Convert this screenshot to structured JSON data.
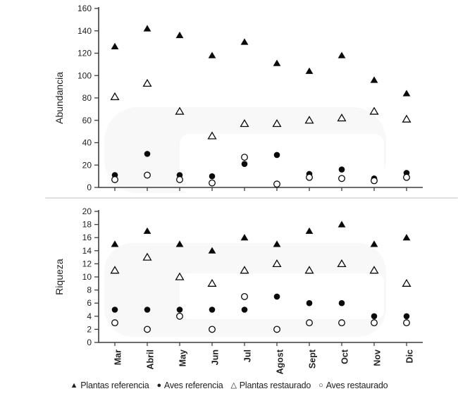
{
  "figure": {
    "background": "#ffffff",
    "divider_color": "#dedede",
    "axis_color": "#3d3d3d",
    "text_color": "#1f1f1f",
    "marker_color": "#0a0a0a"
  },
  "legend": {
    "items": [
      {
        "marker": "filled-triangle",
        "glyph": "▲",
        "label": "Plantas referencia"
      },
      {
        "marker": "filled-circle",
        "glyph": "●",
        "label": "Aves referencia"
      },
      {
        "marker": "open-triangle",
        "glyph": "△",
        "label": "Plantas restaurado"
      },
      {
        "marker": "open-circle",
        "glyph": "○",
        "label": "Aves restaurado"
      }
    ]
  },
  "chart_data": [
    {
      "type": "scatter",
      "title": "",
      "xlabel": "",
      "ylabel": "Abundancia",
      "grid": false,
      "legend_position": "bottom",
      "categories": [
        "Mar",
        "Abril",
        "May",
        "Jun",
        "Jul",
        "Agost",
        "Sept",
        "Oct",
        "Nov",
        "Dic"
      ],
      "ylim": [
        0,
        160
      ],
      "ytick_step": 20,
      "ytick_labels": [
        "0",
        "20",
        "40",
        "60",
        "80",
        "100",
        "120",
        "140",
        "160"
      ],
      "show_x_labels": false,
      "series": [
        {
          "name": "Plantas referencia",
          "marker": "filled-triangle",
          "values": [
            126,
            142,
            136,
            118,
            130,
            111,
            104,
            118,
            96,
            84
          ]
        },
        {
          "name": "Aves referencia",
          "marker": "filled-circle",
          "values": [
            11,
            30,
            11,
            10,
            21,
            29,
            12,
            16,
            8,
            13
          ]
        },
        {
          "name": "Plantas restaurado",
          "marker": "open-triangle",
          "values": [
            81,
            93,
            68,
            46,
            57,
            57,
            60,
            62,
            68,
            61
          ]
        },
        {
          "name": "Aves restaurado",
          "marker": "open-circle",
          "values": [
            7,
            11,
            7,
            4,
            27,
            3,
            9,
            8,
            6,
            9
          ]
        }
      ]
    },
    {
      "type": "scatter",
      "title": "",
      "xlabel": "",
      "ylabel": "Riqueza",
      "grid": false,
      "legend_position": "bottom",
      "categories": [
        "Mar",
        "Abril",
        "May",
        "Jun",
        "Jul",
        "Agost",
        "Sept",
        "Oct",
        "Nov",
        "Dic"
      ],
      "ylim": [
        0,
        20
      ],
      "ytick_step": 2,
      "ytick_labels": [
        "0",
        "2",
        "4",
        "6",
        "8",
        "10",
        "12",
        "14",
        "16",
        "18",
        "20"
      ],
      "show_x_labels": true,
      "series": [
        {
          "name": "Plantas referencia",
          "marker": "filled-triangle",
          "values": [
            15,
            17,
            15,
            14,
            16,
            15,
            17,
            18,
            15,
            16
          ]
        },
        {
          "name": "Aves referencia",
          "marker": "filled-circle",
          "values": [
            5,
            5,
            5,
            5,
            5,
            7,
            6,
            6,
            4,
            4
          ]
        },
        {
          "name": "Plantas restaurado",
          "marker": "open-triangle",
          "values": [
            11,
            13,
            10,
            9,
            11,
            12,
            11,
            12,
            11,
            9
          ]
        },
        {
          "name": "Aves restaurado",
          "marker": "open-circle",
          "values": [
            3,
            2,
            4,
            2,
            7,
            2,
            3,
            3,
            3,
            3
          ]
        }
      ]
    }
  ]
}
